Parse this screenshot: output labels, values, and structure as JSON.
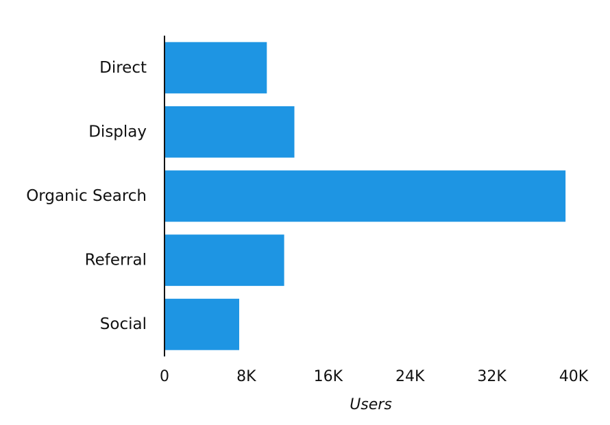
{
  "chart_data": {
    "type": "bar",
    "orientation": "horizontal",
    "categories": [
      "Direct",
      "Display",
      "Organic Search",
      "Referral",
      "Social"
    ],
    "values": [
      10000,
      12700,
      39200,
      11700,
      7300
    ],
    "xlabel": "Users",
    "ylabel": "",
    "xlim": [
      0,
      40000
    ],
    "x_ticks": [
      "0",
      "8K",
      "16K",
      "24K",
      "32K",
      "40K"
    ],
    "grid": false,
    "bar_color": "#1e95e3"
  }
}
